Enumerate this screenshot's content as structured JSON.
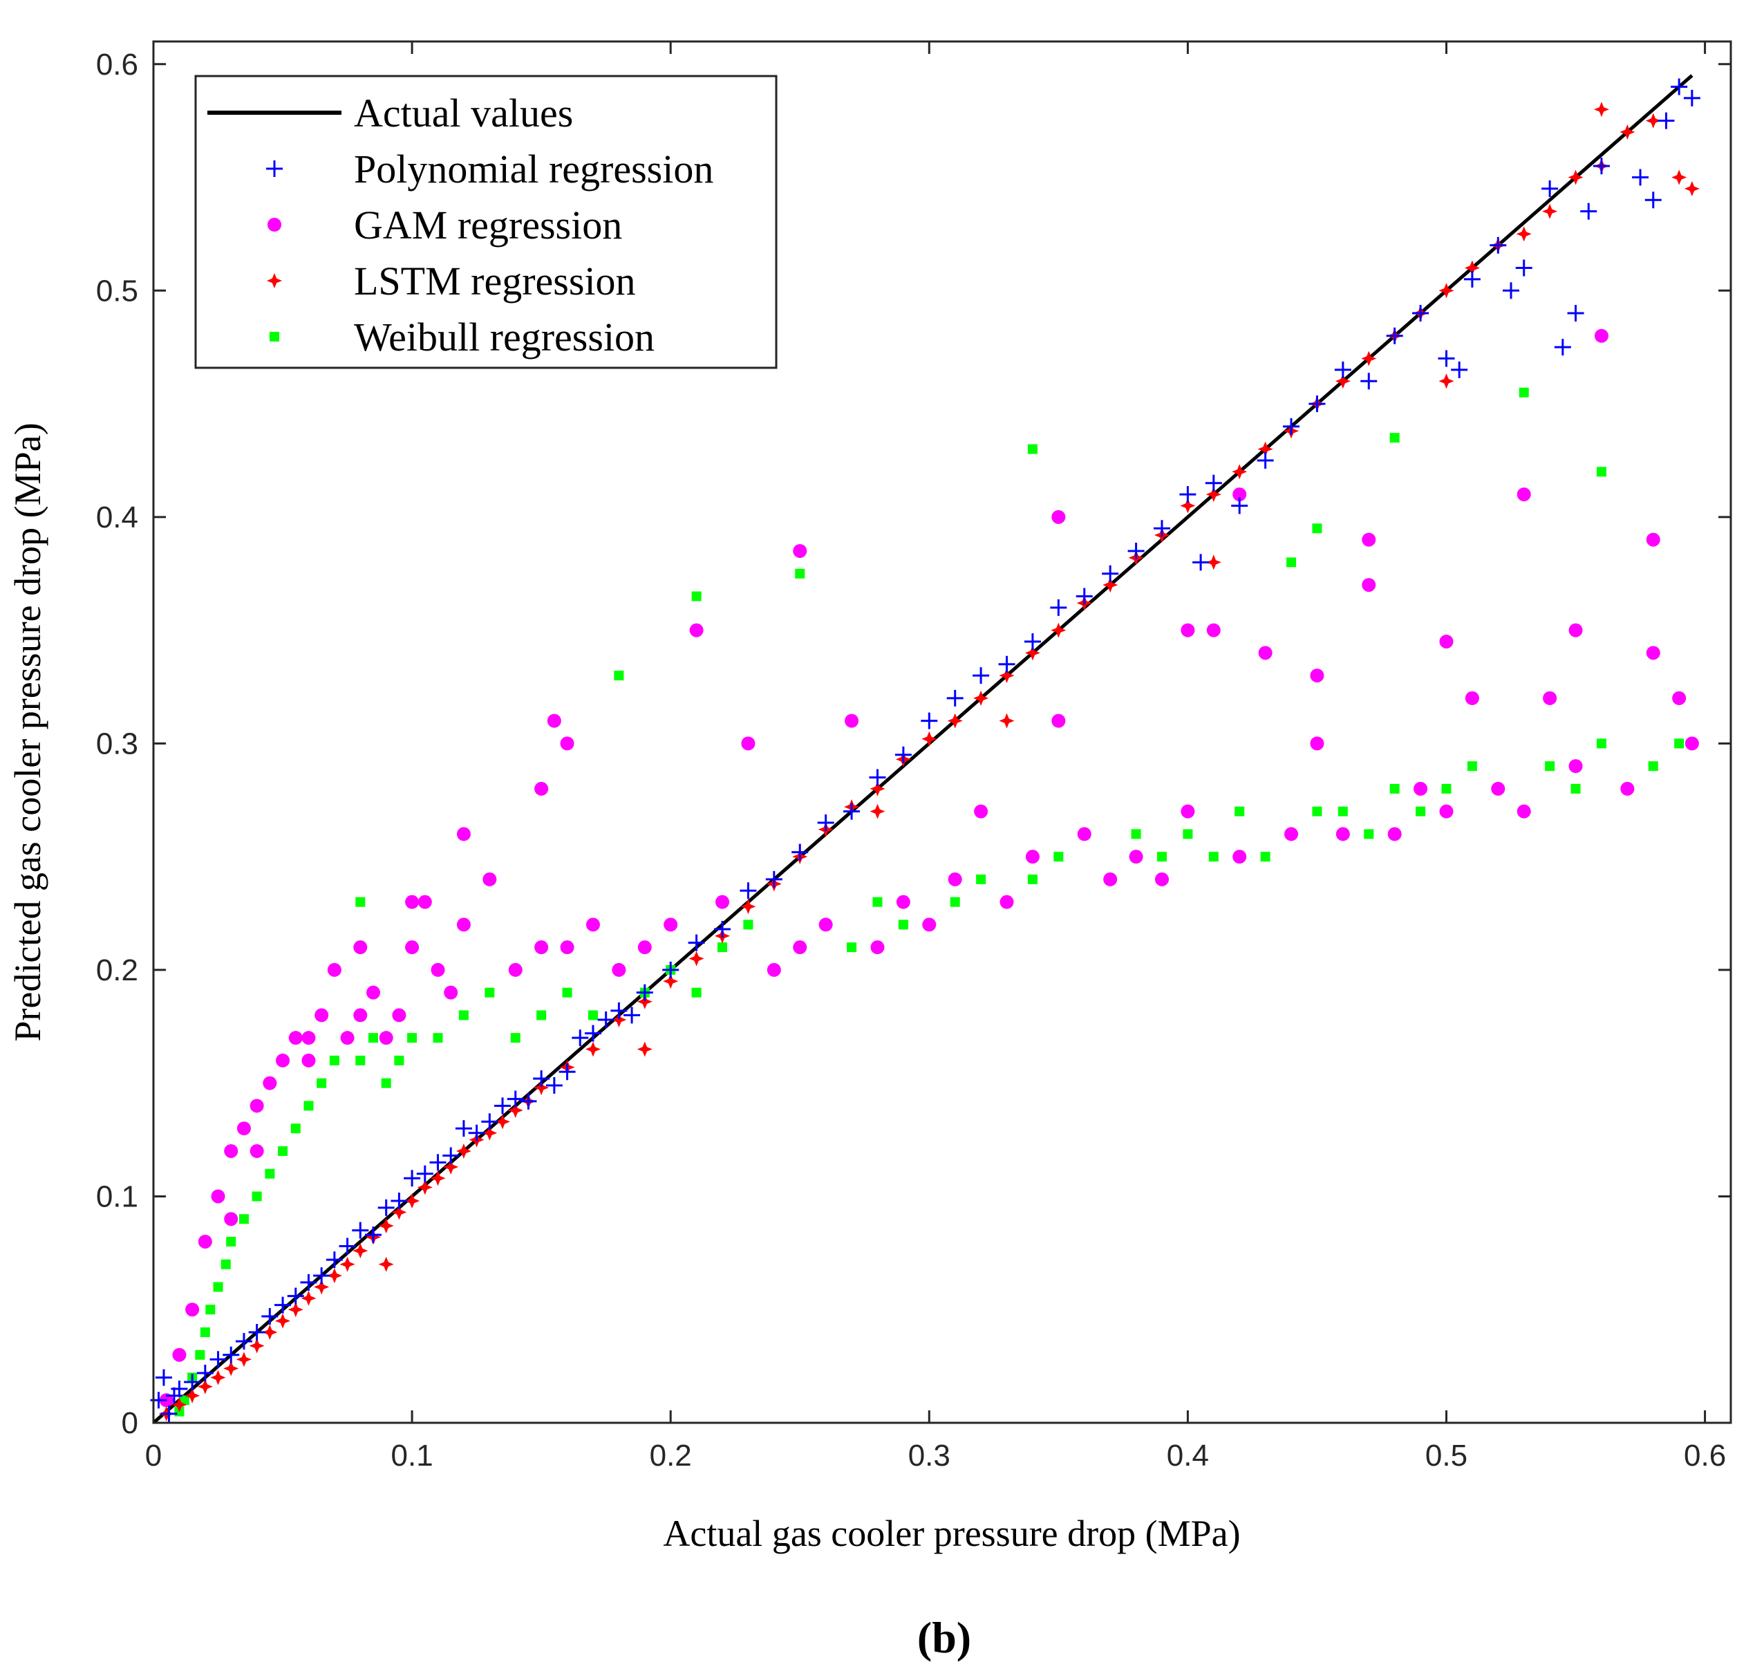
{
  "chart_data": {
    "type": "scatter",
    "title": "",
    "xlabel": "Actual gas cooler pressure drop (MPa)",
    "ylabel": "Predicted gas cooler pressure drop (MPa)",
    "xlim": [
      0,
      0.61
    ],
    "ylim": [
      0,
      0.61
    ],
    "x_ticks": [
      0,
      0.1,
      0.2,
      0.3,
      0.4,
      0.5,
      0.6
    ],
    "x_tick_labels": [
      "0",
      "0.1",
      "0.2",
      "0.3",
      "0.4",
      "0.5",
      "0.6"
    ],
    "y_ticks": [
      0,
      0.1,
      0.2,
      0.3,
      0.4,
      0.5,
      0.6
    ],
    "y_tick_labels": [
      "0",
      "0.1",
      "0.2",
      "0.3",
      "0.4",
      "0.5",
      "0.6"
    ],
    "grid": false,
    "legend_position": "top-left",
    "panel_label": "(b)",
    "series": [
      {
        "name": "Actual values",
        "kind": "line",
        "color": "#000000",
        "x": [
          0,
          0.595
        ],
        "y": [
          0,
          0.595
        ]
      },
      {
        "name": "Polynomial regression",
        "kind": "plus",
        "color": "#0000ff",
        "x": [
          0.002,
          0.004,
          0.006,
          0.008,
          0.01,
          0.015,
          0.02,
          0.025,
          0.03,
          0.035,
          0.04,
          0.045,
          0.05,
          0.055,
          0.06,
          0.065,
          0.07,
          0.075,
          0.08,
          0.085,
          0.09,
          0.095,
          0.1,
          0.105,
          0.11,
          0.115,
          0.12,
          0.125,
          0.13,
          0.135,
          0.14,
          0.145,
          0.15,
          0.155,
          0.16,
          0.165,
          0.17,
          0.175,
          0.18,
          0.185,
          0.19,
          0.2,
          0.21,
          0.22,
          0.23,
          0.24,
          0.25,
          0.26,
          0.27,
          0.28,
          0.29,
          0.3,
          0.31,
          0.32,
          0.33,
          0.34,
          0.35,
          0.36,
          0.37,
          0.38,
          0.39,
          0.4,
          0.405,
          0.41,
          0.42,
          0.43,
          0.44,
          0.45,
          0.46,
          0.47,
          0.48,
          0.49,
          0.5,
          0.505,
          0.51,
          0.52,
          0.525,
          0.53,
          0.54,
          0.545,
          0.55,
          0.555,
          0.56,
          0.575,
          0.58,
          0.585,
          0.59,
          0.595
        ],
        "y": [
          0.01,
          0.02,
          0.004,
          0.012,
          0.015,
          0.018,
          0.022,
          0.028,
          0.03,
          0.036,
          0.04,
          0.047,
          0.052,
          0.056,
          0.062,
          0.065,
          0.072,
          0.078,
          0.085,
          0.083,
          0.095,
          0.098,
          0.108,
          0.11,
          0.115,
          0.118,
          0.13,
          0.128,
          0.133,
          0.14,
          0.143,
          0.142,
          0.152,
          0.149,
          0.155,
          0.17,
          0.172,
          0.178,
          0.182,
          0.18,
          0.19,
          0.2,
          0.212,
          0.218,
          0.235,
          0.24,
          0.252,
          0.265,
          0.27,
          0.285,
          0.295,
          0.31,
          0.32,
          0.33,
          0.335,
          0.345,
          0.36,
          0.365,
          0.375,
          0.385,
          0.395,
          0.41,
          0.38,
          0.415,
          0.405,
          0.425,
          0.44,
          0.45,
          0.465,
          0.46,
          0.48,
          0.49,
          0.47,
          0.465,
          0.505,
          0.52,
          0.5,
          0.51,
          0.545,
          0.475,
          0.49,
          0.535,
          0.555,
          0.55,
          0.54,
          0.575,
          0.59,
          0.585
        ]
      },
      {
        "name": "GAM regression",
        "kind": "circle",
        "color": "#ff00ff",
        "x": [
          0.005,
          0.01,
          0.015,
          0.02,
          0.025,
          0.03,
          0.035,
          0.04,
          0.045,
          0.05,
          0.055,
          0.06,
          0.065,
          0.07,
          0.075,
          0.08,
          0.085,
          0.09,
          0.095,
          0.1,
          0.105,
          0.11,
          0.115,
          0.12,
          0.13,
          0.14,
          0.15,
          0.155,
          0.16,
          0.17,
          0.18,
          0.19,
          0.2,
          0.21,
          0.22,
          0.23,
          0.24,
          0.25,
          0.25,
          0.26,
          0.27,
          0.28,
          0.29,
          0.3,
          0.31,
          0.32,
          0.33,
          0.34,
          0.35,
          0.36,
          0.37,
          0.38,
          0.39,
          0.4,
          0.41,
          0.42,
          0.43,
          0.44,
          0.45,
          0.46,
          0.47,
          0.48,
          0.49,
          0.5,
          0.51,
          0.52,
          0.53,
          0.54,
          0.55,
          0.56,
          0.57,
          0.58,
          0.59,
          0.595,
          0.35,
          0.4,
          0.45,
          0.5,
          0.55,
          0.58,
          0.42,
          0.47,
          0.53,
          0.16,
          0.15,
          0.12,
          0.1,
          0.08,
          0.06,
          0.04,
          0.03
        ],
        "y": [
          0.01,
          0.03,
          0.05,
          0.08,
          0.1,
          0.12,
          0.13,
          0.14,
          0.15,
          0.16,
          0.17,
          0.16,
          0.18,
          0.2,
          0.17,
          0.18,
          0.19,
          0.17,
          0.18,
          0.21,
          0.23,
          0.2,
          0.19,
          0.22,
          0.24,
          0.2,
          0.21,
          0.31,
          0.21,
          0.22,
          0.2,
          0.21,
          0.22,
          0.35,
          0.23,
          0.3,
          0.2,
          0.21,
          0.385,
          0.22,
          0.31,
          0.21,
          0.23,
          0.22,
          0.24,
          0.27,
          0.23,
          0.25,
          0.4,
          0.26,
          0.24,
          0.25,
          0.24,
          0.27,
          0.35,
          0.25,
          0.34,
          0.26,
          0.33,
          0.26,
          0.39,
          0.26,
          0.28,
          0.27,
          0.32,
          0.28,
          0.27,
          0.32,
          0.29,
          0.48,
          0.28,
          0.39,
          0.32,
          0.3,
          0.31,
          0.35,
          0.3,
          0.345,
          0.35,
          0.34,
          0.41,
          0.37,
          0.41,
          0.3,
          0.28,
          0.26,
          0.23,
          0.21,
          0.17,
          0.12,
          0.09
        ]
      },
      {
        "name": "LSTM regression",
        "kind": "star",
        "color": "#ff0000",
        "x": [
          0.005,
          0.01,
          0.015,
          0.02,
          0.025,
          0.03,
          0.035,
          0.04,
          0.045,
          0.05,
          0.055,
          0.06,
          0.065,
          0.07,
          0.075,
          0.08,
          0.085,
          0.09,
          0.095,
          0.1,
          0.105,
          0.11,
          0.115,
          0.12,
          0.125,
          0.13,
          0.135,
          0.14,
          0.145,
          0.15,
          0.16,
          0.17,
          0.18,
          0.19,
          0.2,
          0.21,
          0.22,
          0.23,
          0.24,
          0.25,
          0.26,
          0.27,
          0.28,
          0.29,
          0.3,
          0.31,
          0.32,
          0.33,
          0.34,
          0.35,
          0.36,
          0.37,
          0.38,
          0.39,
          0.4,
          0.41,
          0.42,
          0.43,
          0.44,
          0.45,
          0.46,
          0.47,
          0.48,
          0.49,
          0.5,
          0.51,
          0.52,
          0.53,
          0.54,
          0.55,
          0.56,
          0.57,
          0.58,
          0.59,
          0.595,
          0.09,
          0.19,
          0.28,
          0.33,
          0.41,
          0.5,
          0.56
        ],
        "y": [
          0.004,
          0.008,
          0.012,
          0.016,
          0.02,
          0.024,
          0.028,
          0.034,
          0.04,
          0.045,
          0.05,
          0.055,
          0.06,
          0.065,
          0.07,
          0.076,
          0.082,
          0.087,
          0.093,
          0.098,
          0.104,
          0.108,
          0.113,
          0.12,
          0.125,
          0.128,
          0.133,
          0.138,
          0.142,
          0.148,
          0.157,
          0.165,
          0.178,
          0.186,
          0.195,
          0.205,
          0.215,
          0.228,
          0.238,
          0.25,
          0.262,
          0.272,
          0.28,
          0.293,
          0.302,
          0.31,
          0.32,
          0.33,
          0.34,
          0.35,
          0.362,
          0.37,
          0.382,
          0.392,
          0.405,
          0.41,
          0.42,
          0.43,
          0.438,
          0.45,
          0.46,
          0.47,
          0.48,
          0.49,
          0.5,
          0.51,
          0.52,
          0.525,
          0.535,
          0.55,
          0.555,
          0.57,
          0.575,
          0.55,
          0.545,
          0.07,
          0.165,
          0.27,
          0.31,
          0.38,
          0.46,
          0.58
        ]
      },
      {
        "name": "Weibull regression",
        "kind": "square",
        "color": "#00ff00",
        "x": [
          0.01,
          0.012,
          0.015,
          0.018,
          0.02,
          0.022,
          0.025,
          0.028,
          0.03,
          0.035,
          0.04,
          0.045,
          0.05,
          0.055,
          0.06,
          0.065,
          0.07,
          0.075,
          0.08,
          0.085,
          0.09,
          0.095,
          0.1,
          0.11,
          0.12,
          0.13,
          0.14,
          0.15,
          0.16,
          0.17,
          0.18,
          0.19,
          0.2,
          0.21,
          0.22,
          0.23,
          0.24,
          0.25,
          0.25,
          0.26,
          0.27,
          0.28,
          0.29,
          0.3,
          0.31,
          0.32,
          0.33,
          0.34,
          0.35,
          0.36,
          0.37,
          0.38,
          0.39,
          0.4,
          0.41,
          0.42,
          0.43,
          0.44,
          0.45,
          0.46,
          0.47,
          0.48,
          0.49,
          0.5,
          0.51,
          0.52,
          0.53,
          0.54,
          0.55,
          0.56,
          0.57,
          0.58,
          0.59,
          0.595,
          0.34,
          0.21,
          0.18,
          0.08,
          0.53,
          0.56,
          0.48,
          0.45,
          0.44
        ],
        "y": [
          0.005,
          0.01,
          0.02,
          0.03,
          0.04,
          0.05,
          0.06,
          0.07,
          0.08,
          0.09,
          0.1,
          0.11,
          0.12,
          0.13,
          0.14,
          0.15,
          0.16,
          0.17,
          0.16,
          0.17,
          0.15,
          0.16,
          0.17,
          0.17,
          0.18,
          0.19,
          0.17,
          0.18,
          0.19,
          0.18,
          0.2,
          0.19,
          0.2,
          0.19,
          0.21,
          0.22,
          0.2,
          0.21,
          0.375,
          0.22,
          0.21,
          0.23,
          0.22,
          0.22,
          0.23,
          0.24,
          0.23,
          0.24,
          0.25,
          0.26,
          0.24,
          0.26,
          0.25,
          0.26,
          0.25,
          0.27,
          0.25,
          0.26,
          0.27,
          0.27,
          0.26,
          0.28,
          0.27,
          0.28,
          0.29,
          0.28,
          0.27,
          0.29,
          0.28,
          0.3,
          0.28,
          0.29,
          0.3,
          0.3,
          0.43,
          0.365,
          0.33,
          0.23,
          0.455,
          0.42,
          0.435,
          0.395,
          0.38
        ]
      }
    ]
  }
}
